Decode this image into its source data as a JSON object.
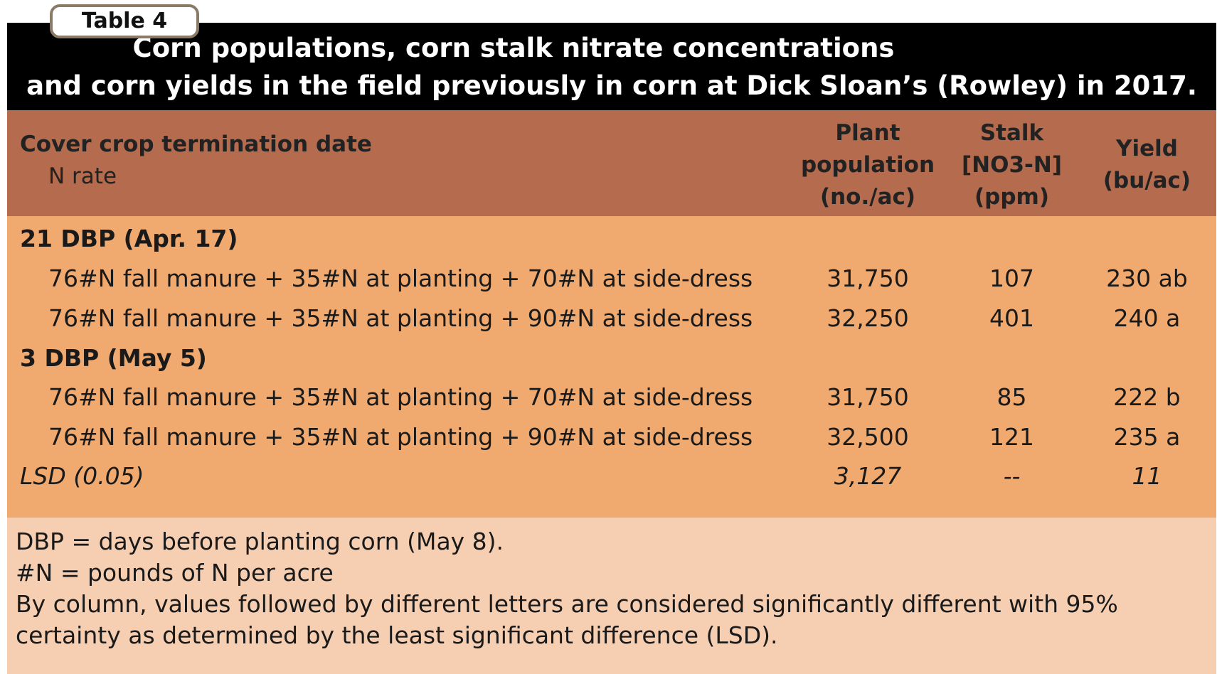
{
  "table_label": "Table 4",
  "title": {
    "line1": "Corn populations, corn stalk nitrate concentrations",
    "line2": "and corn yields in the field previously in corn at Dick Sloan’s (Rowley) in 2017."
  },
  "header": {
    "col0_main": "Cover crop termination date",
    "col0_sub": "N rate",
    "col1": [
      "Plant",
      "population",
      "(no./ac)"
    ],
    "col2": [
      "Stalk",
      "[NO3-N]",
      "(ppm)"
    ],
    "col3": [
      "Yield",
      "(bu/ac)"
    ]
  },
  "groups": [
    {
      "label": "21 DBP (Apr. 17)",
      "rows": [
        {
          "label": "76#N fall manure + 35#N at planting + 70#N at side-dress",
          "population": "31,750",
          "stalk": "107",
          "yield": "230 ab"
        },
        {
          "label": "76#N fall manure + 35#N at planting + 90#N at side-dress",
          "population": "32,250",
          "stalk": "401",
          "yield": "240 a"
        }
      ]
    },
    {
      "label": "3 DBP (May 5)",
      "rows": [
        {
          "label": "76#N fall manure + 35#N at planting + 70#N at side-dress",
          "population": "31,750",
          "stalk": "85",
          "yield": "222 b"
        },
        {
          "label": "76#N fall manure + 35#N at planting + 90#N at side-dress",
          "population": "32,500",
          "stalk": "121",
          "yield": "235 a"
        }
      ]
    }
  ],
  "lsd": {
    "label": "LSD (0.05)",
    "population": "3,127",
    "stalk": "--",
    "yield": "11"
  },
  "notes": [
    "DBP = days before planting corn (May 8).",
    "#N = pounds of N per acre",
    "By column, values followed by different letters are considered significantly different with 95%",
    "certainty as determined by the least significant difference (LSD)."
  ],
  "colors": {
    "title_bg": "#000000",
    "header_bg": "#b46b4e",
    "body_bg": "#f0a96e",
    "notes_bg": "#f6cfb2"
  }
}
